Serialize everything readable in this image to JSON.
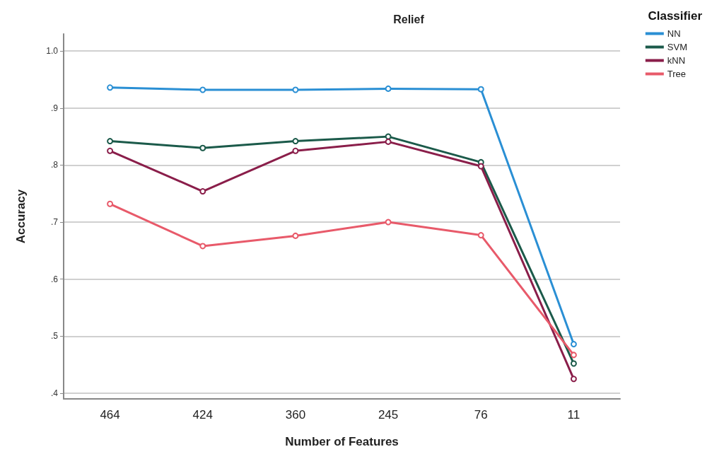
{
  "chart_data": {
    "type": "line",
    "title": "Relief",
    "xlabel": "Number of Features",
    "ylabel": "Accuracy",
    "legend_title": "Classifier",
    "legend": "right",
    "grid": "y",
    "marker": "circle",
    "line_style": "solid",
    "categories": [
      "464",
      "424",
      "360",
      "245",
      "76",
      "11"
    ],
    "ylim": [
      0.39,
      1.03
    ],
    "yticks": [
      {
        "value": 0.4,
        "label": ".4"
      },
      {
        "value": 0.5,
        "label": ".5"
      },
      {
        "value": 0.6,
        "label": ".6"
      },
      {
        "value": 0.7,
        "label": ".7"
      },
      {
        "value": 0.8,
        "label": ".8"
      },
      {
        "value": 0.9,
        "label": ".9"
      },
      {
        "value": 1.0,
        "label": "1.0"
      }
    ],
    "series": [
      {
        "name": "NN",
        "color": "#2a8fd4",
        "values": [
          0.936,
          0.932,
          0.932,
          0.934,
          0.933,
          0.486
        ]
      },
      {
        "name": "SVM",
        "color": "#1b5a4a",
        "values": [
          0.842,
          0.83,
          0.842,
          0.85,
          0.805,
          0.452
        ]
      },
      {
        "name": "kNN",
        "color": "#8a1e4a",
        "values": [
          0.825,
          0.754,
          0.825,
          0.841,
          0.798,
          0.425
        ]
      },
      {
        "name": "Tree",
        "color": "#e85a6a",
        "values": [
          0.732,
          0.658,
          0.676,
          0.7,
          0.677,
          0.467
        ]
      }
    ]
  }
}
